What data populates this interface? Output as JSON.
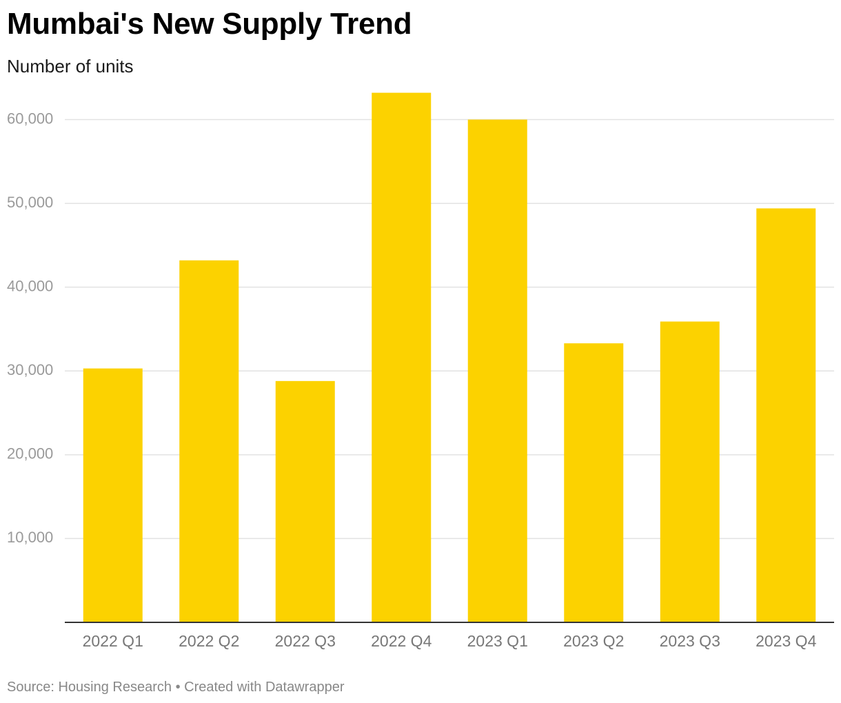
{
  "header": {
    "title": "Mumbai's New Supply Trend",
    "subtitle": "Number of units"
  },
  "footer": {
    "source_prefix": "Source: ",
    "source_name": "Housing Research",
    "separator": " • ",
    "credit": "Created with Datawrapper"
  },
  "colors": {
    "bar": "#fcd200",
    "grid": "#e2e2e2",
    "baseline": "#333333"
  },
  "chart_data": {
    "type": "bar",
    "title": "Mumbai's New Supply Trend",
    "subtitle": "Number of units",
    "xlabel": "",
    "ylabel": "",
    "categories": [
      "2022 Q1",
      "2022 Q2",
      "2022 Q3",
      "2022 Q4",
      "2023 Q1",
      "2023 Q2",
      "2023 Q3",
      "2023 Q4"
    ],
    "values": [
      30300,
      43200,
      28800,
      63200,
      60000,
      33300,
      35900,
      49400
    ],
    "ylim": [
      0,
      65000
    ],
    "yticks": [
      10000,
      20000,
      30000,
      40000,
      50000,
      60000
    ],
    "ytick_labels": [
      "10,000",
      "20,000",
      "30,000",
      "40,000",
      "50,000",
      "60,000"
    ],
    "grid": true,
    "legend": "none"
  }
}
